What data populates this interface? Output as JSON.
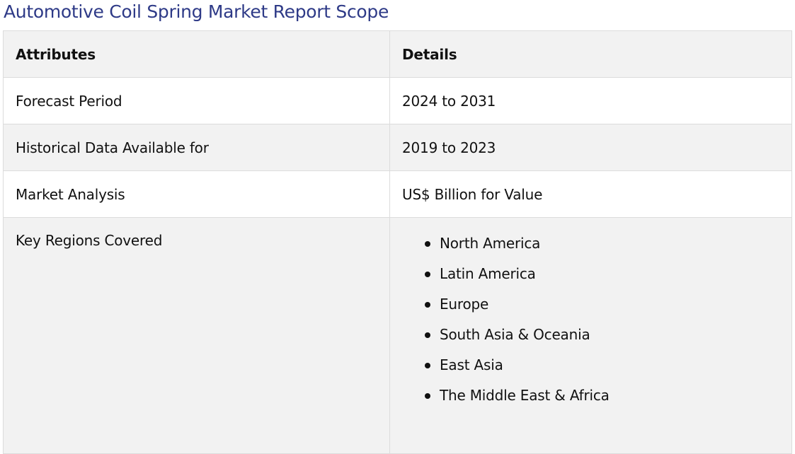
{
  "title": "Automotive Coil Spring Market Report Scope",
  "table": {
    "headers": [
      "Attributes",
      "Details"
    ],
    "rows": [
      {
        "attribute": "Forecast Period",
        "detail": "2024 to 2031"
      },
      {
        "attribute": "Historical Data Available for",
        "detail": "2019 to 2023"
      },
      {
        "attribute": "Market Analysis",
        "detail": "US$ Billion for Value"
      },
      {
        "attribute": "Key Regions Covered",
        "regions": [
          "North America",
          "Latin America",
          "Europe",
          "South Asia & Oceania",
          "East Asia",
          "The Middle East & Africa"
        ]
      }
    ]
  },
  "colors": {
    "title": "#2e3a87",
    "header_bg": "#f2f2f2",
    "row_alt_bg": "#f2f2f2",
    "border": "#dcdcdc"
  }
}
